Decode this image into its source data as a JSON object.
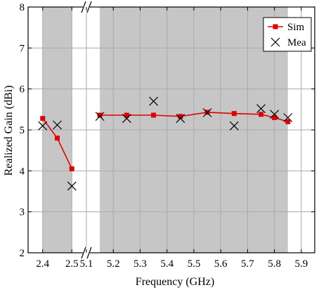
{
  "chart_data": {
    "type": "line",
    "xlabel": "Frequency (GHz)",
    "ylabel": "Realized Gain (dBi)",
    "ylim": [
      2,
      8
    ],
    "yticks": [
      "2",
      "3",
      "4",
      "5",
      "6",
      "7",
      "8"
    ],
    "x_break": true,
    "x_segments": [
      {
        "range": [
          2.35,
          2.55
        ],
        "ticks": [
          "2.4",
          "2.5"
        ],
        "shaded": [
          [
            2.4,
            2.5
          ]
        ]
      },
      {
        "range": [
          5.1,
          5.95
        ],
        "ticks": [
          "5.1",
          "5.2",
          "5.3",
          "5.4",
          "5.5",
          "5.6",
          "5.7",
          "5.8",
          "5.9"
        ],
        "shaded": [
          [
            5.15,
            5.85
          ]
        ]
      }
    ],
    "grid": true,
    "legend_position": "top-right",
    "series": [
      {
        "name": "Sim",
        "style": "line-square",
        "color": "#e00000",
        "x": [
          2.4,
          2.45,
          2.5,
          5.15,
          5.25,
          5.35,
          5.45,
          5.55,
          5.65,
          5.75,
          5.8,
          5.85
        ],
        "y": [
          5.28,
          4.8,
          4.05,
          5.36,
          5.36,
          5.36,
          5.33,
          5.43,
          5.4,
          5.38,
          5.3,
          5.2
        ]
      },
      {
        "name": "Mea",
        "style": "x-marker",
        "color": "#000000",
        "x": [
          2.4,
          2.45,
          2.5,
          5.15,
          5.25,
          5.35,
          5.45,
          5.55,
          5.65,
          5.75,
          5.8,
          5.85
        ],
        "y": [
          5.1,
          5.12,
          3.63,
          5.33,
          5.28,
          5.7,
          5.28,
          5.42,
          5.1,
          5.52,
          5.38,
          5.3
        ]
      }
    ]
  },
  "colors": {
    "shade": "#c6c6c6",
    "grid": "#aaaaaa"
  }
}
